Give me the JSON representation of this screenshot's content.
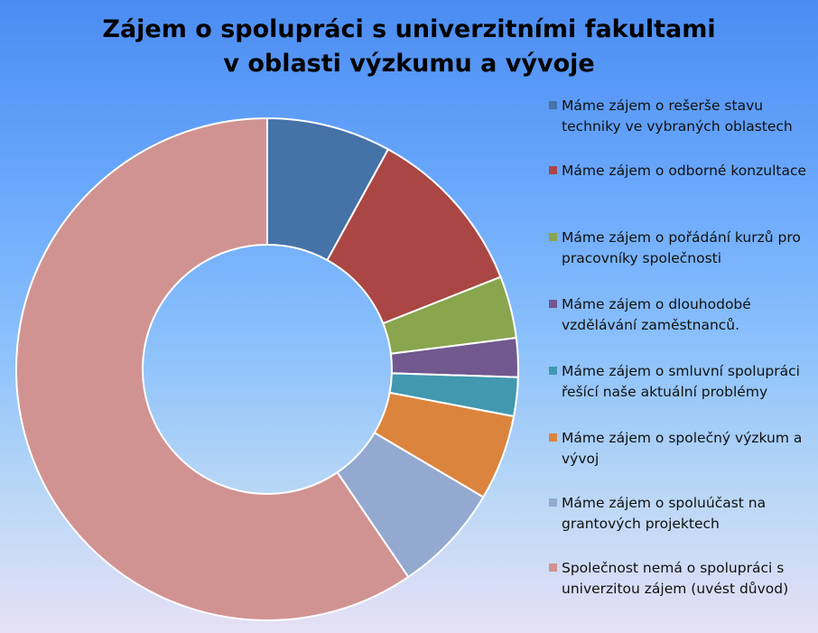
{
  "title": {
    "line1": "Zájem o spolupráci s univerzitními fakultami",
    "line2": "v oblasti výzkumu a vývoje"
  },
  "chart_data": {
    "type": "pie",
    "variant": "doughnut",
    "title": "Zájem o spolupráci s univerzitními fakultami v oblasti výzkumu a vývoje",
    "legend_position": "right",
    "series": [
      {
        "name": " Máme zájem o rešerše stavu techniky ve vybraných oblastech",
        "value": 8,
        "color": "#4572a7"
      },
      {
        "name": " Máme zájem o odborné konzultace",
        "value": 11,
        "color": "#aa4643"
      },
      {
        "name": " Máme zájem o pořádání kurzů pro pracovníky společnosti",
        "value": 4,
        "color": "#89a54e"
      },
      {
        "name": " Máme zájem o dlouhodobé vzdělávání zaměstnanců.",
        "value": 2.5,
        "color": "#71588f"
      },
      {
        "name": " Máme zájem o smluvní spolupráci řešící naše aktuální problémy",
        "value": 2.5,
        "color": "#4198af"
      },
      {
        "name": " Máme zájem o společný výzkum a vývoj",
        "value": 5.5,
        "color": "#db843d"
      },
      {
        "name": "Máme zájem o spoluúčast na grantových projektech",
        "value": 7,
        "color": "#93a9cf"
      },
      {
        "name": "Společnost nemá o spolupráci s univerzitou zájem (uvést důvod)",
        "value": 59.5,
        "color": "#d19392"
      }
    ]
  }
}
